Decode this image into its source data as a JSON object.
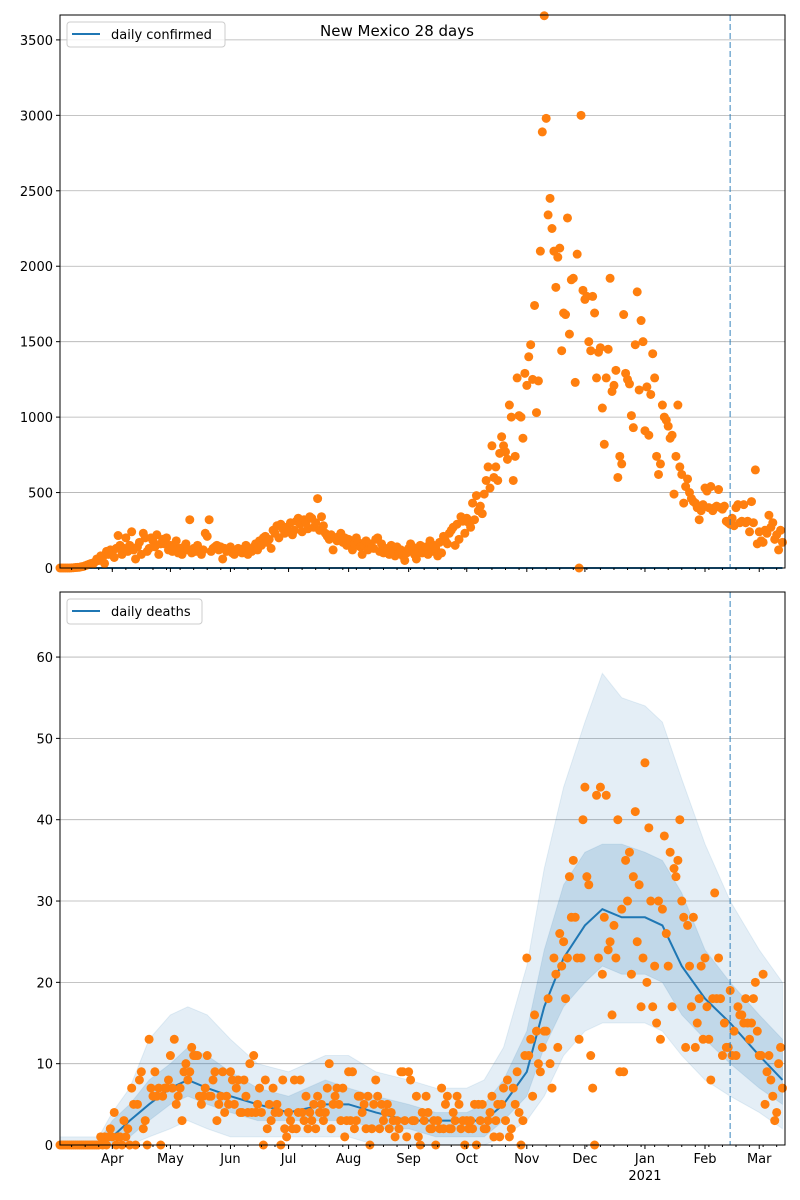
{
  "chart_data": [
    {
      "type": "scatter",
      "title": "New Mexico 28 days",
      "legend": {
        "label": "daily confirmed",
        "placement": "top-left"
      },
      "start_date": "2020-03-05",
      "xlim_days": [
        0,
        374.3
      ],
      "ylim": [
        0,
        3665
      ],
      "yticks": [
        0,
        500,
        1000,
        1500,
        2000,
        2500,
        3000,
        3500
      ],
      "grid": "y",
      "marker_color": "#ff7f0e",
      "line_color": "#1f77b4",
      "vline_day": 346,
      "model_line": [
        [
          0,
          0
        ],
        [
          373,
          0
        ]
      ],
      "observed": [
        0,
        0,
        0,
        0,
        0,
        0,
        1,
        2,
        3,
        4,
        5,
        8,
        10,
        15,
        20,
        25,
        30,
        25,
        40,
        60,
        50,
        80,
        70,
        30,
        110,
        90,
        120,
        100,
        70,
        130,
        215,
        150,
        90,
        130,
        200,
        110,
        150,
        240,
        120,
        60,
        140,
        170,
        90,
        230,
        200,
        110,
        130,
        200,
        180,
        140,
        220,
        90,
        160,
        190,
        160,
        200,
        120,
        150,
        110,
        140,
        180,
        100,
        130,
        90,
        140,
        160,
        120,
        320,
        100,
        130,
        110,
        150,
        120,
        90,
        120,
        230,
        210,
        320,
        110,
        130,
        140,
        150,
        120,
        140,
        60,
        130,
        110,
        120,
        140,
        100,
        90,
        110,
        130,
        120,
        100,
        130,
        150,
        90,
        120,
        110,
        140,
        160,
        120,
        180,
        150,
        200,
        210,
        170,
        190,
        130,
        250,
        230,
        280,
        200,
        290,
        260,
        230,
        270,
        240,
        300,
        220,
        250,
        310,
        330,
        290,
        240,
        320,
        300,
        260,
        340,
        330,
        270,
        300,
        460,
        250,
        340,
        280,
        230,
        210,
        190,
        220,
        120,
        200,
        180,
        210,
        230,
        170,
        200,
        150,
        190,
        180,
        120,
        160,
        200,
        170,
        140,
        90,
        150,
        180,
        120,
        160,
        140,
        130,
        190,
        200,
        110,
        160,
        100,
        130,
        120,
        90,
        150,
        110,
        80,
        140,
        100,
        120,
        80,
        50,
        100,
        130,
        160,
        140,
        90,
        60,
        110,
        150,
        100,
        120,
        140,
        90,
        180,
        110,
        150,
        130,
        80,
        170,
        100,
        210,
        180,
        160,
        230,
        250,
        270,
        150,
        290,
        190,
        340,
        310,
        230,
        330,
        300,
        270,
        430,
        320,
        480,
        380,
        410,
        360,
        490,
        580,
        670,
        530,
        810,
        600,
        670,
        580,
        760,
        870,
        810,
        770,
        720,
        1080,
        1000,
        580,
        740,
        1260,
        1010,
        1000,
        860,
        1290,
        1210,
        1400,
        1480,
        1250,
        1740,
        1030,
        1240,
        2100,
        2890,
        3660,
        2980,
        2340,
        2450,
        2250,
        2100,
        1860,
        2060,
        2120,
        1440,
        1690,
        1680,
        2320,
        1550,
        1910,
        1920,
        1230,
        2080,
        0,
        3000,
        1840,
        1780,
        1800,
        1500,
        1440,
        1800,
        1690,
        1260,
        1430,
        1460,
        1060,
        820,
        1260,
        1450,
        1920,
        1170,
        1210,
        1310,
        600,
        740,
        690,
        1680,
        1290,
        1250,
        1220,
        1010,
        930,
        1480,
        1830,
        1180,
        1640,
        1500,
        910,
        1200,
        880,
        1150,
        1420,
        1260,
        740,
        620,
        690,
        1080,
        1000,
        980,
        940,
        860,
        880,
        490,
        740,
        1080,
        670,
        620,
        430,
        540,
        590,
        500,
        460,
        440,
        430,
        400,
        320,
        380,
        420,
        530,
        510,
        400,
        540,
        380,
        400,
        410,
        520,
        400,
        390,
        410,
        310,
        300,
        290,
        330,
        280,
        400,
        420,
        300,
        310,
        420,
        300,
        310,
        240,
        440,
        300,
        650,
        160,
        240,
        180,
        170,
        250,
        230,
        350,
        270,
        300,
        190,
        220,
        120,
        250,
        170
      ]
    },
    {
      "type": "scatter",
      "legend": {
        "label": "daily deaths",
        "placement": "top-left"
      },
      "start_date": "2020-03-05",
      "xlim_days": [
        0,
        374.3
      ],
      "ylim": [
        0,
        68
      ],
      "yticks": [
        0,
        10,
        20,
        30,
        40,
        50,
        60
      ],
      "grid": "y",
      "marker_color": "#ff7f0e",
      "line_color": "#1f77b4",
      "band_color": "#1f77b4",
      "vline_day": 346,
      "xticks": [
        {
          "day": 27,
          "label": "Apr"
        },
        {
          "day": 57,
          "label": "May"
        },
        {
          "day": 88,
          "label": "Jun"
        },
        {
          "day": 118,
          "label": "Jul"
        },
        {
          "day": 149,
          "label": "Aug"
        },
        {
          "day": 180,
          "label": "Sep"
        },
        {
          "day": 210,
          "label": "Oct"
        },
        {
          "day": 241,
          "label": "Nov"
        },
        {
          "day": 271,
          "label": "Dec"
        },
        {
          "day": 302,
          "label": "Jan",
          "sublabel": "2021"
        },
        {
          "day": 333,
          "label": "Feb"
        },
        {
          "day": 361,
          "label": "Mar"
        }
      ],
      "model": {
        "columns": [
          "day",
          "median",
          "p25",
          "p75",
          "p5",
          "p95"
        ],
        "rows": [
          [
            0,
            0,
            0,
            0.5,
            0,
            1
          ],
          [
            20,
            0,
            0,
            0.5,
            0,
            1
          ],
          [
            27,
            1,
            0,
            3,
            0,
            4
          ],
          [
            36,
            3,
            1,
            5,
            0,
            7
          ],
          [
            46,
            5,
            3,
            8,
            1,
            13
          ],
          [
            57,
            7,
            5,
            10,
            2,
            16
          ],
          [
            66,
            8,
            6,
            12,
            3,
            17
          ],
          [
            76,
            7,
            5,
            11,
            2,
            16
          ],
          [
            88,
            6,
            4,
            9,
            1,
            13
          ],
          [
            102,
            5,
            3,
            7,
            1,
            10
          ],
          [
            118,
            4,
            3,
            6,
            1,
            9
          ],
          [
            137,
            5,
            3,
            8,
            1,
            11
          ],
          [
            149,
            5,
            3,
            7,
            1,
            11
          ],
          [
            163,
            4,
            2,
            6,
            0,
            9
          ],
          [
            180,
            3,
            2,
            5,
            0,
            8
          ],
          [
            194,
            3,
            1,
            4,
            0,
            7
          ],
          [
            210,
            3,
            1,
            4,
            0,
            7
          ],
          [
            219,
            3,
            1,
            5,
            0,
            8
          ],
          [
            229,
            5,
            3,
            8,
            1,
            12
          ],
          [
            241,
            9,
            6,
            14,
            3,
            22
          ],
          [
            250,
            17,
            12,
            24,
            6,
            34
          ],
          [
            260,
            23,
            17,
            32,
            11,
            44
          ],
          [
            271,
            27,
            20,
            36,
            14,
            52
          ],
          [
            280,
            29,
            22,
            37,
            15,
            58
          ],
          [
            290,
            28,
            21,
            37,
            15,
            55
          ],
          [
            302,
            28,
            21,
            36,
            15,
            54
          ],
          [
            311,
            27,
            20,
            35,
            14,
            52
          ],
          [
            321,
            22,
            16,
            31,
            11,
            45
          ],
          [
            333,
            18,
            13,
            24,
            8,
            37
          ],
          [
            346,
            15,
            10,
            20,
            6,
            30
          ],
          [
            361,
            11,
            7,
            16,
            4,
            24
          ],
          [
            373,
            8,
            5,
            13,
            2,
            20
          ]
        ]
      },
      "observed": [
        0,
        0,
        0,
        0,
        0,
        0,
        0,
        0,
        0,
        0,
        0,
        0,
        0,
        0,
        0,
        0,
        0,
        0,
        0,
        0,
        0,
        1,
        0,
        1,
        0,
        1,
        2,
        1,
        4,
        0,
        1,
        1,
        0,
        3,
        1,
        2,
        0,
        7,
        5,
        0,
        5,
        8,
        9,
        2,
        3,
        0,
        13,
        7,
        6,
        9,
        6,
        7,
        0,
        6,
        7,
        7,
        8,
        11,
        7,
        13,
        5,
        6,
        7,
        3,
        9,
        10,
        8,
        9,
        12,
        11,
        11,
        11,
        6,
        5,
        6,
        7,
        11,
        6,
        6,
        8,
        9,
        3,
        5,
        6,
        9,
        4,
        6,
        5,
        9,
        8,
        5,
        7,
        8,
        4,
        4,
        8,
        6,
        4,
        10,
        4,
        11,
        4,
        5,
        7,
        4,
        0,
        8,
        2,
        5,
        3,
        7,
        4,
        5,
        4,
        0,
        8,
        2,
        1,
        4,
        3,
        2,
        8,
        2,
        4,
        8,
        4,
        3,
        6,
        2,
        4,
        3,
        5,
        2,
        6,
        4,
        5,
        3,
        4,
        7,
        10,
        2,
        5,
        6,
        7,
        5,
        3,
        7,
        1,
        3,
        9,
        3,
        9,
        2,
        3,
        6,
        6,
        4,
        5,
        2,
        6,
        0,
        2,
        5,
        8,
        6,
        2,
        5,
        3,
        4,
        5,
        2,
        4,
        3,
        1,
        3,
        2,
        9,
        9,
        3,
        1,
        9,
        8,
        3,
        3,
        6,
        1,
        0,
        4,
        3,
        6,
        4,
        2,
        2,
        3,
        0,
        3,
        2,
        7,
        2,
        5,
        6,
        2,
        2,
        4,
        3,
        6,
        5,
        2,
        3,
        0,
        3,
        2,
        3,
        2,
        5,
        0,
        5,
        3,
        5,
        2,
        2,
        3,
        4,
        6,
        1,
        3,
        5,
        1,
        5,
        7,
        3,
        8,
        1,
        2,
        7,
        5,
        9,
        4,
        0,
        3,
        11,
        23,
        11,
        13,
        6,
        16,
        14,
        10,
        9,
        12,
        14,
        14,
        18,
        10,
        7,
        23,
        21,
        12,
        26,
        22,
        25,
        18,
        23,
        33,
        28,
        35,
        28,
        23,
        13,
        23,
        40,
        44,
        33,
        32,
        11,
        7,
        0,
        43,
        23,
        44,
        21,
        28,
        43,
        24,
        25,
        16,
        27,
        23,
        40,
        9,
        29,
        9,
        35,
        30,
        36,
        21,
        33,
        41,
        25,
        32,
        17,
        23,
        47,
        20,
        39,
        30,
        17,
        22,
        15,
        30,
        13,
        29,
        38,
        26,
        22,
        36,
        17,
        34,
        33,
        35,
        40,
        30,
        28,
        12,
        27,
        22,
        17,
        28,
        12,
        15,
        18,
        22,
        13,
        23,
        17,
        13,
        8,
        18,
        31,
        18,
        23,
        18,
        11,
        15,
        12,
        12,
        19,
        11,
        14,
        11,
        17,
        16,
        16,
        15,
        18,
        15,
        13,
        15,
        18,
        20,
        14,
        11,
        11,
        21,
        5,
        9,
        11,
        8,
        6,
        3,
        4,
        10,
        12,
        7
      ]
    }
  ]
}
